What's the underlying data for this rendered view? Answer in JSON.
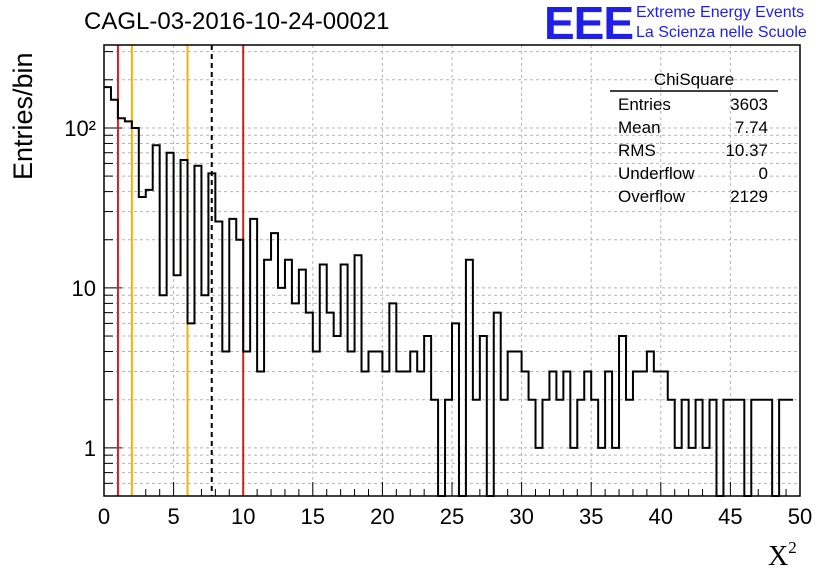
{
  "header": {
    "title": "CAGL-03-2016-10-24-00021",
    "logo_text": "EEE",
    "logo_line1": "Extreme Energy Events",
    "logo_line2": "La Scienza nelle Scuole",
    "brand_color": "#1f1fe8"
  },
  "axes": {
    "ylabel": "Entries/bin",
    "xlabel": "X",
    "xlabel_sup": "2"
  },
  "stats": {
    "title": "ChiSquare",
    "rows": [
      {
        "label": "Entries",
        "value": "3603"
      },
      {
        "label": "Mean",
        "value": "7.74"
      },
      {
        "label": "RMS",
        "value": "10.37"
      },
      {
        "label": "Underflow",
        "value": "0"
      },
      {
        "label": "Overflow",
        "value": "2129"
      }
    ]
  },
  "chart_data": {
    "type": "bar",
    "histogram": "step",
    "xlim": [
      0,
      50
    ],
    "ylim": [
      0.5,
      330
    ],
    "yscale": "log",
    "bin_width": 0.5,
    "grid": true,
    "x_ticks": [
      0,
      5,
      10,
      15,
      20,
      25,
      30,
      35,
      40,
      45,
      50
    ],
    "y_tick_labels": [
      {
        "value": 1,
        "label": "1"
      },
      {
        "value": 10,
        "label": "10"
      },
      {
        "value": 100,
        "label": "10²"
      }
    ],
    "values": [
      180,
      150,
      115,
      110,
      100,
      37,
      41,
      78,
      9,
      70,
      12,
      63,
      6,
      58,
      9,
      52,
      26,
      4,
      27,
      20,
      4,
      27,
      3,
      15,
      22,
      10,
      15,
      8,
      13,
      7,
      4,
      14,
      7,
      5,
      14,
      4,
      16,
      3,
      4,
      4,
      3,
      8,
      3,
      3,
      4,
      3,
      5,
      2,
      0,
      2,
      6,
      0,
      15,
      2,
      5,
      0,
      7,
      2,
      4,
      4,
      3,
      2,
      1,
      2,
      3,
      2,
      3,
      1,
      2,
      3,
      2,
      1,
      3,
      1,
      5,
      2,
      3,
      3,
      4,
      3,
      3,
      2,
      1,
      2,
      1,
      2,
      1,
      2,
      0,
      2,
      2,
      2,
      0,
      2,
      2,
      2,
      0,
      2,
      2
    ],
    "vertical_lines": [
      {
        "x": 1,
        "color": "#d41e1e",
        "style": "solid"
      },
      {
        "x": 2,
        "color": "#f0b400",
        "style": "solid"
      },
      {
        "x": 6,
        "color": "#f0b400",
        "style": "solid"
      },
      {
        "x": 7.74,
        "color": "#000000",
        "style": "dashed"
      },
      {
        "x": 10,
        "color": "#d41e1e",
        "style": "solid"
      }
    ]
  }
}
